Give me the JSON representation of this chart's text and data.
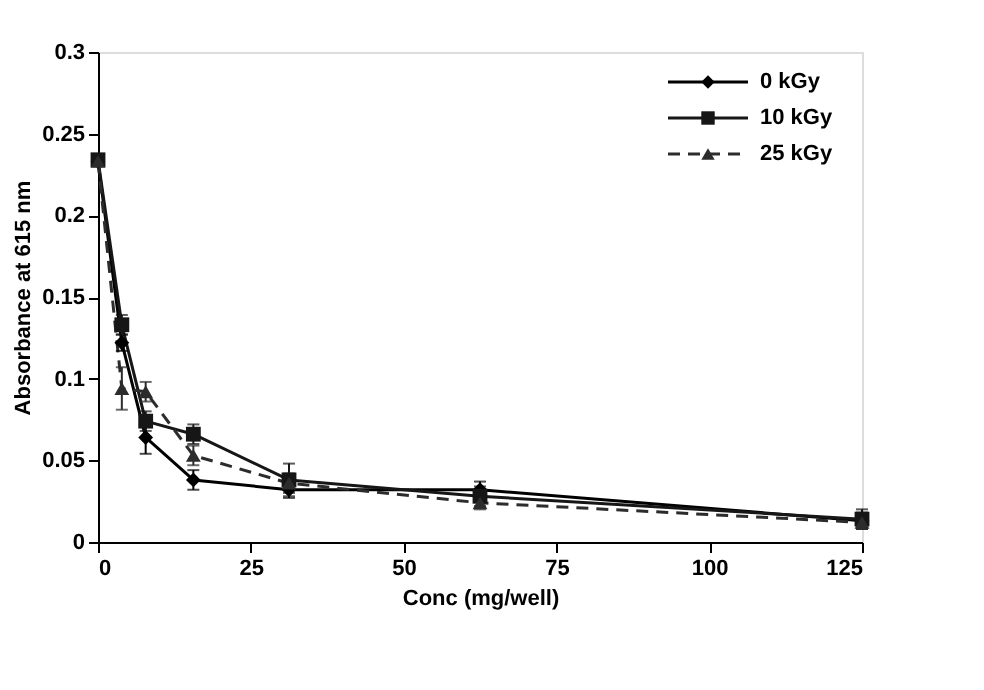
{
  "chart_data": {
    "type": "line",
    "xlabel": "Conc (mg/well)",
    "ylabel": "Absorbance at 615 nm",
    "x": [
      0,
      3.9,
      7.8,
      15.6,
      31.25,
      62.5,
      125
    ],
    "xlim": [
      0,
      125
    ],
    "xticks": [
      0,
      25,
      50,
      75,
      100,
      125
    ],
    "ylim": [
      0,
      0.3
    ],
    "yticks": [
      0,
      0.05,
      0.1,
      0.15,
      0.2,
      0.25,
      0.3
    ],
    "grid": false,
    "legend": "top right",
    "series": [
      {
        "name": "0 kGy",
        "color": "#000000",
        "marker": "diamond",
        "line_style": "solid",
        "values": [
          0.233,
          0.122,
          0.064,
          0.038,
          0.032,
          0.032,
          0.013
        ],
        "errors": [
          0.002,
          0.005,
          0.01,
          0.006,
          0.005,
          0.005,
          0.005
        ]
      },
      {
        "name": "10 kGy",
        "color": "#161616",
        "marker": "square",
        "line_style": "solid",
        "values": [
          0.234,
          0.133,
          0.074,
          0.066,
          0.038,
          0.028,
          0.014
        ],
        "errors": [
          0.002,
          0.006,
          0.006,
          0.006,
          0.01,
          0.006,
          0.006
        ]
      },
      {
        "name": "25 kGy",
        "color": "#2c2c2c",
        "marker": "triangle",
        "line_style": "dashed",
        "values": [
          0.233,
          0.094,
          0.092,
          0.053,
          0.036,
          0.024,
          0.012
        ],
        "errors": [
          0.002,
          0.013,
          0.006,
          0.006,
          0.006,
          0.004,
          0.004
        ]
      }
    ]
  }
}
